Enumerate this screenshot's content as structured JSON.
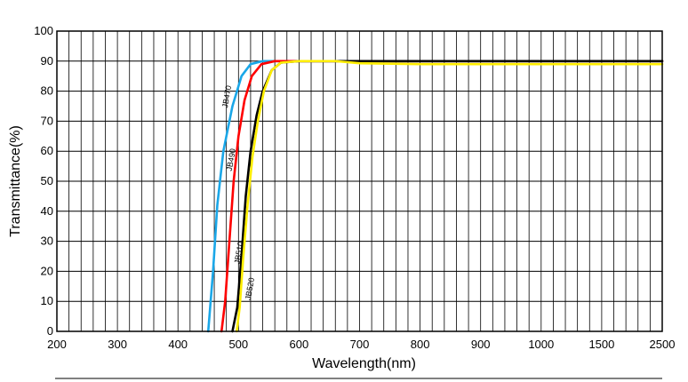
{
  "chart_data": {
    "type": "line",
    "xlabel": "Wavelength(nm)",
    "ylabel": "Transmittance(%)",
    "ylim": [
      0,
      100
    ],
    "x_ticks": [
      "200",
      "300",
      "400",
      "500",
      "600",
      "700",
      "800",
      "900",
      "1000",
      "1500",
      "2500"
    ],
    "y_ticks": [
      "0",
      "10",
      "20",
      "30",
      "40",
      "50",
      "60",
      "70",
      "80",
      "90",
      "100"
    ],
    "grid": true,
    "series": [
      {
        "name": "JB470",
        "color": "#1aa7e8",
        "points": [
          [
            450,
            0
          ],
          [
            458,
            20
          ],
          [
            465,
            42
          ],
          [
            475,
            60
          ],
          [
            490,
            75
          ],
          [
            505,
            85
          ],
          [
            520,
            89
          ],
          [
            540,
            90
          ],
          [
            600,
            90
          ],
          [
            700,
            90
          ],
          [
            900,
            90
          ],
          [
            1500,
            90
          ],
          [
            2500,
            90
          ]
        ]
      },
      {
        "name": "JB490",
        "color": "#ff0000",
        "points": [
          [
            472,
            0
          ],
          [
            478,
            10
          ],
          [
            485,
            30
          ],
          [
            492,
            50
          ],
          [
            500,
            65
          ],
          [
            510,
            77
          ],
          [
            522,
            85
          ],
          [
            538,
            89
          ],
          [
            560,
            90
          ],
          [
            650,
            90
          ],
          [
            700,
            90
          ],
          [
            900,
            90
          ],
          [
            1500,
            90
          ],
          [
            2500,
            90
          ]
        ]
      },
      {
        "name": "JB510",
        "color": "#000000",
        "points": [
          [
            490,
            0
          ],
          [
            498,
            8
          ],
          [
            505,
            25
          ],
          [
            512,
            45
          ],
          [
            520,
            60
          ],
          [
            530,
            72
          ],
          [
            540,
            80
          ],
          [
            555,
            87
          ],
          [
            570,
            89.5
          ],
          [
            600,
            90
          ],
          [
            700,
            90
          ],
          [
            900,
            90
          ],
          [
            1500,
            90
          ],
          [
            2500,
            90
          ]
        ]
      },
      {
        "name": "JB520",
        "color": "#ffee00",
        "points": [
          [
            497,
            0
          ],
          [
            502,
            8
          ],
          [
            508,
            25
          ],
          [
            515,
            42
          ],
          [
            523,
            58
          ],
          [
            532,
            70
          ],
          [
            542,
            80
          ],
          [
            555,
            87
          ],
          [
            570,
            89.5
          ],
          [
            600,
            90
          ],
          [
            660,
            90
          ],
          [
            700,
            89.3
          ],
          [
            800,
            89
          ],
          [
            900,
            89
          ],
          [
            1500,
            89
          ],
          [
            2500,
            89
          ]
        ]
      }
    ]
  }
}
